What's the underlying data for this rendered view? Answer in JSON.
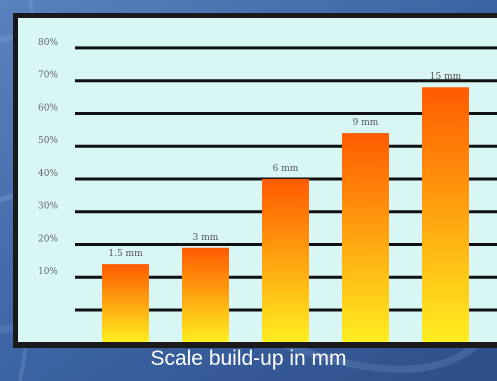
{
  "caption": "Scale build-up in mm",
  "colors": {
    "panel": "#d8f6f4",
    "frame": "#1a1a1a",
    "gridline": "#111111",
    "bar_top": "#ff5a00",
    "bar_bottom": "#ffee20",
    "background": "#3a5f9a"
  },
  "chart_data": {
    "type": "bar",
    "categories": [
      "1.5 mm",
      "3 mm",
      "6 mm",
      "9 mm",
      "15 mm"
    ],
    "values": [
      14,
      19,
      40,
      54,
      68
    ],
    "data_labels": [
      "1.5 mm",
      "3 mm",
      "6 mm",
      "9 mm",
      "15 mm"
    ],
    "ytick_labels": [
      "10%",
      "20%",
      "30%",
      "40%",
      "50%",
      "60%",
      "70%",
      "80%"
    ],
    "yticks": [
      10,
      20,
      30,
      40,
      50,
      60,
      70,
      80
    ],
    "ylim": [
      0,
      87
    ],
    "grid": true,
    "xlabel": "Scale build-up in mm",
    "ylabel": ""
  }
}
